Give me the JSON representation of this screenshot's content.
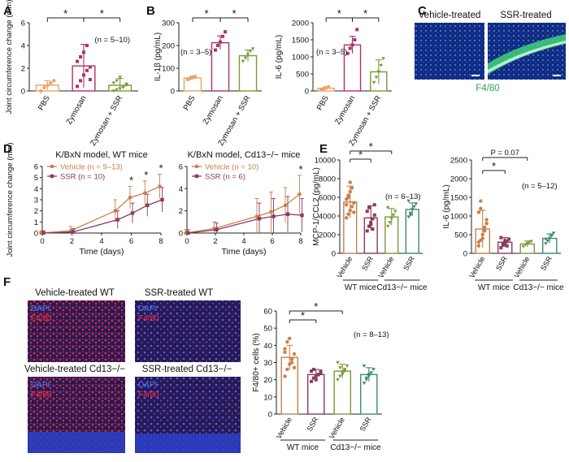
{
  "panels": {
    "A": "A",
    "B": "B",
    "C": "C",
    "D": "D",
    "E": "E",
    "F": "F"
  },
  "colors": {
    "pbs": "#e8a36b",
    "zymosan": "#b0306a",
    "zymo_ssr": "#7a9a3a",
    "vehicle": "#c8804a",
    "ssr": "#8b3a5c",
    "cd13_vehicle": "#7a9a3a",
    "cd13_ssr": "#3f8a70",
    "micro_blue": "#1a3b9c",
    "micro_green": "#3fd27a",
    "micro_red": "#d6283a"
  },
  "star": "*",
  "A": {
    "ylabel": "Joint circumference change (mm)",
    "n_note": "(n = 5–10)",
    "cats": [
      "PBS",
      "Zymosan",
      "Zymosan + SSR"
    ]
  },
  "B1": {
    "ylabel": "IL-1β (pg/mL)",
    "n_note": "(n = 3–5)",
    "cats": [
      "PBS",
      "Zymosan",
      "Zymosan + SSR"
    ]
  },
  "B2": {
    "ylabel": "IL-6 (pg/mL)",
    "n_note": "(n = 3–5)",
    "cats": [
      "PBS",
      "Zymosan",
      "Zymosan + SSR"
    ]
  },
  "C": {
    "title_left": "Vehicle-treated",
    "title_right": "SSR-treated",
    "stain": "F4/80"
  },
  "D1": {
    "title": "K/BxN model, WT mice",
    "legend_vehicle": "Vehicle (n = 9–13)",
    "legend_ssr": "SSR (n = 10)",
    "xlabel": "Time (days)",
    "ylabel": "Joint circumference change (mm)"
  },
  "D2": {
    "title": "K/BxN model, Cd13−/− mice",
    "legend_vehicle": "Vehicle (n = 10)",
    "legend_ssr": "SSR (n = 6)",
    "xlabel": "Time (days)"
  },
  "E1": {
    "ylabel": "MCP-1/CCL2 (pg/mL)",
    "n_note": "(n = 6–13)",
    "group_wt": "WT mice",
    "group_cd13": "Cd13−/− mice",
    "cats": [
      "Vehicle",
      "SSR",
      "Vehicle",
      "SSR"
    ]
  },
  "E2": {
    "ylabel": "IL-6 (pg/mL)",
    "p_note": "P = 0.07",
    "n_note": "(n = 5–12)",
    "group_wt": "WT mice",
    "group_cd13": "Cd13−/− mice",
    "cats": [
      "Vehicle",
      "SSR",
      "Vehicle",
      "SSR"
    ]
  },
  "F": {
    "img_tl": "Vehicle-treated WT",
    "img_tr": "SSR-treated WT",
    "img_bl": "Vehicle-treated Cd13−/−",
    "img_br": "SSR-treated Cd13−/−",
    "dapi": "DAPI",
    "f480": "F4/80",
    "ylabel": "F4/80+ cells (%)",
    "n_note": "(n = 8–13)",
    "group_wt": "WT mice",
    "group_cd13": "Cd13−/− mice",
    "cats": [
      "Vehicle",
      "SSR",
      "Vehicle",
      "SSR"
    ]
  },
  "chart_data": [
    {
      "id": "A",
      "type": "bar",
      "categories": [
        "PBS",
        "Zymosan",
        "Zymosan + SSR"
      ],
      "values": [
        0.5,
        2.2,
        0.5
      ],
      "errors": [
        0.4,
        1.9,
        0.6
      ],
      "ylim": [
        0,
        6
      ],
      "yticks": [
        0,
        2,
        4,
        6
      ],
      "ylabel": "Joint circumference change (mm)",
      "points": [
        [
          0.0,
          0.3,
          0.5,
          0.7,
          0.9
        ],
        [
          0.4,
          0.9,
          1.4,
          1.8,
          2.1,
          2.6,
          3.0,
          3.4,
          4.0,
          1.0
        ],
        [
          0.0,
          0.1,
          0.2,
          0.4,
          0.5,
          0.7,
          0.9,
          1.2,
          0.3,
          0.6
        ]
      ]
    },
    {
      "id": "B1",
      "type": "bar",
      "categories": [
        "PBS",
        "Zymosan",
        "Zymosan + SSR"
      ],
      "values": [
        57,
        212,
        155
      ],
      "errors": [
        8,
        30,
        25
      ],
      "ylim": [
        0,
        300
      ],
      "yticks": [
        0,
        100,
        200,
        300
      ],
      "ylabel": "IL-1β (pg/mL)",
      "points": [
        [
          50,
          55,
          60,
          63
        ],
        [
          180,
          200,
          215,
          240,
          260
        ],
        [
          130,
          145,
          160,
          175,
          185
        ]
      ]
    },
    {
      "id": "B2",
      "type": "bar",
      "categories": [
        "PBS",
        "Zymosan",
        "Zymosan + SSR"
      ],
      "values": [
        80,
        1350,
        560
      ],
      "errors": [
        40,
        250,
        350
      ],
      "ylim": [
        0,
        2000
      ],
      "yticks": [
        0,
        500,
        1000,
        1500,
        2000
      ],
      "ylabel": "IL-6 (pg/mL)",
      "points": [
        [
          40,
          70,
          90,
          120
        ],
        [
          1100,
          1250,
          1350,
          1500,
          1800
        ],
        [
          250,
          400,
          560,
          750,
          950
        ]
      ]
    },
    {
      "id": "D1",
      "type": "line",
      "x": [
        0,
        2,
        5,
        6,
        7,
        8
      ],
      "xlim": [
        0,
        8
      ],
      "xticks": [
        0,
        2,
        4,
        6,
        8
      ],
      "ylim": [
        0,
        6
      ],
      "yticks": [
        0,
        1,
        2,
        3,
        4,
        5,
        6
      ],
      "xlabel": "Time (days)",
      "ylabel": "Joint circumference change (mm)",
      "series": [
        {
          "name": "Vehicle (n = 9–13)",
          "values": [
            0,
            0.2,
            2.0,
            3.2,
            3.6,
            4.2
          ],
          "errors": [
            0.2,
            0.4,
            1.0,
            1.0,
            1.1,
            1.1
          ]
        },
        {
          "name": "SSR (n = 10)",
          "values": [
            0,
            0.1,
            1.2,
            1.8,
            2.5,
            3.0
          ],
          "errors": [
            0.2,
            0.3,
            0.8,
            0.9,
            1.0,
            1.1
          ]
        }
      ],
      "sig_x": [
        6,
        7,
        8
      ]
    },
    {
      "id": "D2",
      "type": "line",
      "x": [
        0,
        2,
        5,
        6,
        7,
        8
      ],
      "xlim": [
        0,
        8
      ],
      "xticks": [
        0,
        2,
        4,
        6,
        8
      ],
      "ylim": [
        0,
        6
      ],
      "yticks": [
        0,
        2,
        4,
        6
      ],
      "xlabel": "Time (days)",
      "series": [
        {
          "name": "Vehicle (n = 10)",
          "values": [
            0,
            0.4,
            1.5,
            1.9,
            2.5,
            3.5
          ],
          "errors": [
            0.3,
            0.6,
            1.6,
            1.8,
            1.6,
            1.7
          ]
        },
        {
          "name": "SSR (n = 6)",
          "values": [
            0,
            0.3,
            1.3,
            1.5,
            1.7,
            1.6
          ],
          "errors": [
            0.3,
            0.6,
            1.4,
            1.6,
            1.6,
            1.5
          ]
        }
      ],
      "sig_x": [
        8
      ]
    },
    {
      "id": "E1",
      "type": "bar",
      "categories": [
        "Vehicle",
        "SSR",
        "Vehicle",
        "SSR"
      ],
      "values": [
        5500,
        3800,
        3900,
        4700
      ],
      "errors": [
        1700,
        1300,
        900,
        700
      ],
      "ylim": [
        0,
        10000
      ],
      "yticks": [
        0,
        2000,
        4000,
        6000,
        8000,
        10000
      ],
      "ylabel": "MCP-1/CCL2 (pg/mL)",
      "points": [
        [
          3800,
          4200,
          4600,
          5000,
          5400,
          5800,
          6200,
          6600,
          7000,
          4400,
          5200,
          6000,
          7600
        ],
        [
          2400,
          2900,
          3300,
          3700,
          4100,
          4500,
          4900,
          3100,
          2600,
          5200
        ],
        [
          2900,
          3300,
          3700,
          4100,
          4500,
          4900
        ],
        [
          3900,
          4300,
          4700,
          5000,
          5300,
          5600,
          4100
        ]
      ]
    },
    {
      "id": "E2",
      "type": "bar",
      "categories": [
        "Vehicle",
        "SSR",
        "Vehicle",
        "SSR"
      ],
      "values": [
        650,
        300,
        250,
        400
      ],
      "errors": [
        500,
        120,
        80,
        120
      ],
      "ylim": [
        0,
        2500
      ],
      "yticks": [
        0,
        500,
        1000,
        1500,
        2000,
        2500
      ],
      "ylabel": "IL-6 (pg/mL)",
      "points": [
        [
          200,
          350,
          500,
          700,
          900,
          1100,
          1400,
          400,
          600,
          800,
          300,
          1200
        ],
        [
          150,
          220,
          280,
          320,
          380,
          420,
          260,
          340,
          200
        ],
        [
          180,
          230,
          260,
          300,
          320
        ],
        [
          260,
          330,
          400,
          470,
          540,
          380
        ]
      ]
    },
    {
      "id": "F",
      "type": "bar",
      "categories": [
        "Vehicle",
        "SSR",
        "Vehicle",
        "SSR"
      ],
      "values": [
        33,
        23,
        25,
        23
      ],
      "errors": [
        7,
        3,
        4,
        4
      ],
      "ylim": [
        0,
        60
      ],
      "yticks": [
        0,
        10,
        20,
        30,
        40,
        50,
        60
      ],
      "ylabel": "F4/80+ cells (%)",
      "points": [
        [
          22,
          26,
          29,
          32,
          35,
          38,
          42,
          44,
          30,
          27,
          36
        ],
        [
          19,
          21,
          22,
          23,
          24,
          25,
          26,
          20,
          23,
          25
        ],
        [
          20,
          22,
          24,
          26,
          28,
          30,
          27,
          23,
          25
        ],
        [
          18,
          20,
          22,
          24,
          26,
          28,
          21,
          23
        ]
      ]
    }
  ]
}
